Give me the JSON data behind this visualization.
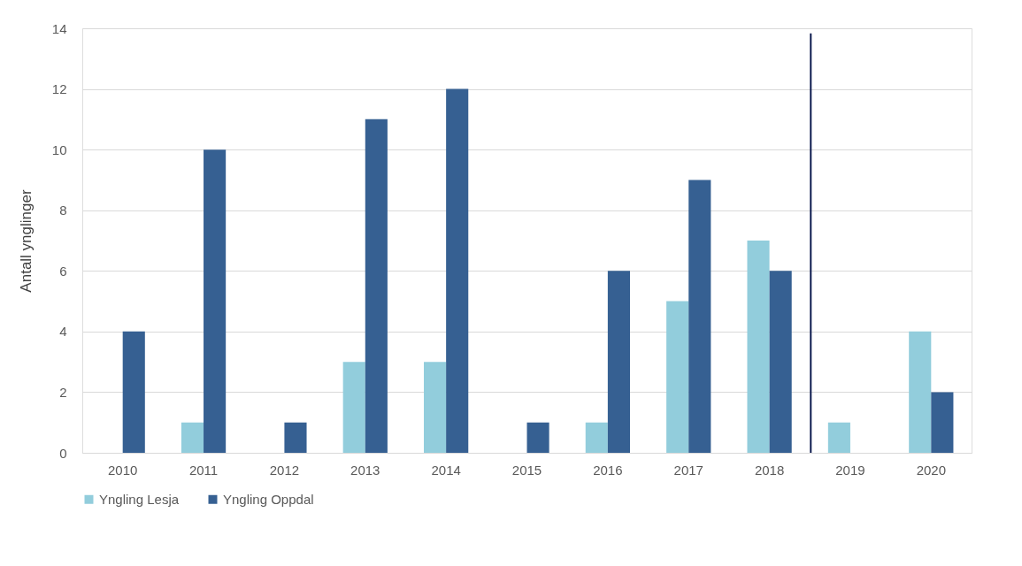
{
  "chart_data": {
    "type": "bar",
    "ylabel": "Antall ynglinger",
    "categories": [
      "2010",
      "2011",
      "2012",
      "2013",
      "2014",
      "2015",
      "2016",
      "2017",
      "2018",
      "2019",
      "2020"
    ],
    "series": [
      {
        "name": "Yngling Lesja",
        "color": "#92cddc",
        "values": [
          null,
          1,
          null,
          3,
          3,
          null,
          1,
          5,
          7,
          1,
          4
        ]
      },
      {
        "name": "Yngling Oppdal",
        "color": "#366092",
        "values": [
          4,
          10,
          1,
          11,
          12,
          1,
          6,
          9,
          6,
          null,
          2
        ]
      }
    ],
    "ylim": [
      0,
      14
    ],
    "yticks": [
      0,
      2,
      4,
      6,
      8,
      10,
      12,
      14
    ],
    "grid": "y",
    "legend": "bottom",
    "ref_lines": [
      {
        "axis": "x",
        "value": "2019",
        "color": "#0d1b4f"
      }
    ]
  }
}
